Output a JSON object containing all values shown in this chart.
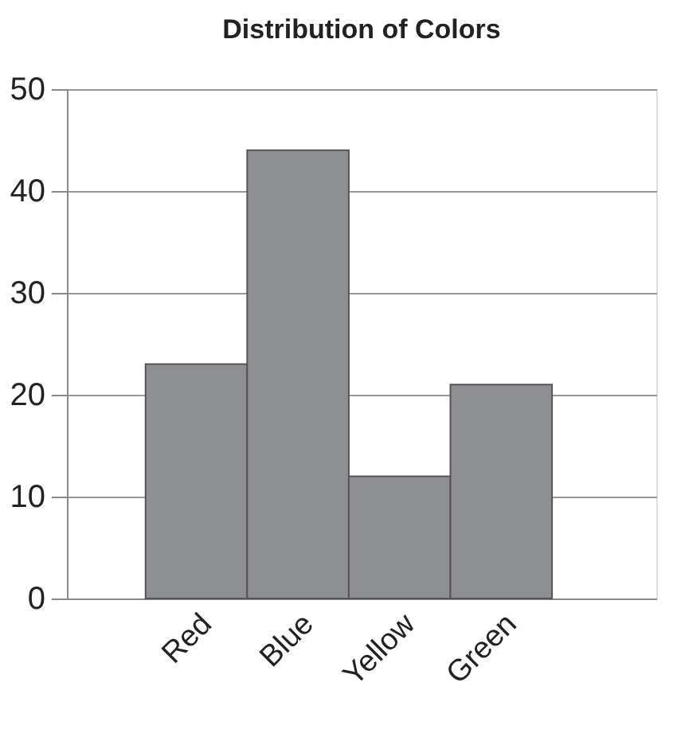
{
  "chart_data": {
    "type": "bar",
    "title": "Distribution of Colors",
    "categories": [
      "Red",
      "Blue",
      "Yellow",
      "Green"
    ],
    "values": [
      23,
      44,
      12,
      21
    ],
    "color": "#8e8f93",
    "ylim": [
      0,
      50
    ],
    "yticks": [
      0,
      10,
      20,
      30,
      40,
      50
    ],
    "grid": "y"
  }
}
